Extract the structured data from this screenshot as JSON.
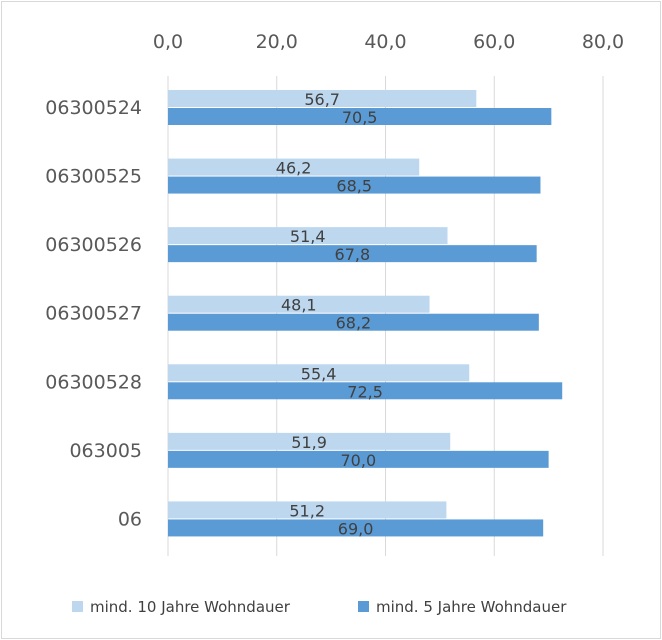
{
  "chart_data": {
    "type": "bar",
    "orientation": "horizontal",
    "categories": [
      "06300524",
      "06300525",
      "06300526",
      "06300527",
      "06300528",
      "063005",
      "06"
    ],
    "x_ticks": [
      "0,0",
      "20,0",
      "40,0",
      "60,0",
      "80,0"
    ],
    "xlim": [
      0,
      80
    ],
    "grid": true,
    "legend_position": "bottom",
    "series": [
      {
        "name": "mind. 10 Jahre Wohndauer",
        "color": "#bdd7ee",
        "values": [
          56.7,
          46.2,
          51.4,
          48.1,
          55.4,
          51.9,
          51.2
        ],
        "labels": [
          "56,7",
          "46,2",
          "51,4",
          "48,1",
          "55,4",
          "51,9",
          "51,2"
        ]
      },
      {
        "name": "mind. 5 Jahre Wohndauer",
        "color": "#5b9bd5",
        "values": [
          70.5,
          68.5,
          67.8,
          68.2,
          72.5,
          70.0,
          69.0
        ],
        "labels": [
          "70,5",
          "68,5",
          "67,8",
          "68,2",
          "72,5",
          "70,0",
          "69,0"
        ]
      }
    ]
  }
}
